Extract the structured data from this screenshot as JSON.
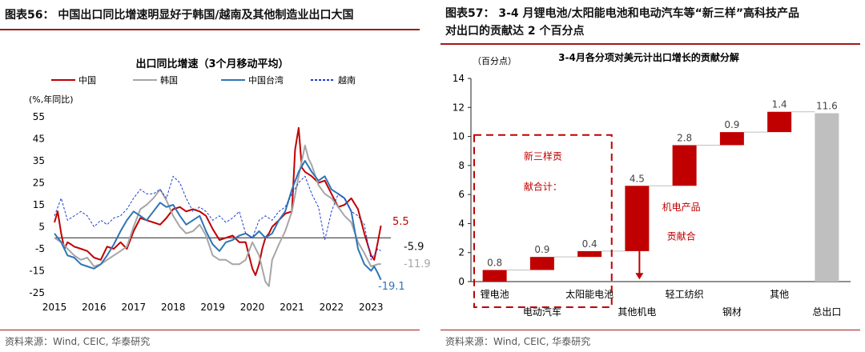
{
  "left": {
    "figure_title": "图表56：  中国出口同比增速明显好于韩国/越南及其他制造业出口大国",
    "source": "资料来源：Wind, CEIC,  华泰研究",
    "chart_data": {
      "type": "line",
      "title": "出口同比增速（3个月移动平均）",
      "ylabel": "(%,年同比)",
      "ylim": [
        -25,
        55
      ],
      "yticks": [
        "55",
        "45",
        "35",
        "25",
        "15",
        "5",
        "-5",
        "-15",
        "-25"
      ],
      "xlim": [
        2015,
        2023.5
      ],
      "xticks": [
        "2015",
        "2016",
        "2017",
        "2018",
        "2019",
        "2020",
        "2021",
        "2022",
        "2023"
      ],
      "legend": "top",
      "series": [
        {
          "name": "中国",
          "color": "#c00000",
          "dash": "",
          "x": [
            2015.0,
            2015.08,
            2015.17,
            2015.25,
            2015.33,
            2015.42,
            2015.5,
            2015.67,
            2015.83,
            2016.0,
            2016.17,
            2016.33,
            2016.5,
            2016.67,
            2016.83,
            2017.0,
            2017.17,
            2017.33,
            2017.5,
            2017.67,
            2017.83,
            2018.0,
            2018.17,
            2018.33,
            2018.5,
            2018.67,
            2018.83,
            2019.0,
            2019.17,
            2019.33,
            2019.5,
            2019.67,
            2019.83,
            2020.0,
            2020.08,
            2020.17,
            2020.25,
            2020.33,
            2020.42,
            2020.5,
            2020.67,
            2020.83,
            2021.0,
            2021.08,
            2021.17,
            2021.25,
            2021.33,
            2021.5,
            2021.67,
            2021.83,
            2022.0,
            2022.17,
            2022.33,
            2022.5,
            2022.67,
            2022.83,
            2023.0,
            2023.08,
            2023.17,
            2023.25
          ],
          "y": [
            7,
            12,
            2,
            -5,
            -2,
            -3,
            -4,
            -5,
            -6,
            -9,
            -10,
            -4,
            -5,
            -2,
            -5,
            3,
            9,
            8,
            7,
            6,
            9,
            13,
            14,
            12,
            13,
            12,
            10,
            4,
            -1,
            0,
            1,
            -2,
            -2,
            -14,
            -17,
            -12,
            -5,
            0,
            2,
            5,
            8,
            11,
            12,
            40,
            50,
            32,
            30,
            28,
            25,
            26,
            20,
            14,
            15,
            18,
            13,
            2,
            -8,
            -10,
            -2,
            5.5
          ]
        },
        {
          "name": "韩国",
          "color": "#a6a6a6",
          "dash": "",
          "x": [
            2015.0,
            2015.17,
            2015.33,
            2015.5,
            2015.67,
            2015.83,
            2016.0,
            2016.17,
            2016.33,
            2016.5,
            2016.67,
            2016.83,
            2017.0,
            2017.17,
            2017.33,
            2017.5,
            2017.67,
            2017.83,
            2018.0,
            2018.17,
            2018.33,
            2018.5,
            2018.67,
            2018.83,
            2019.0,
            2019.17,
            2019.33,
            2019.5,
            2019.67,
            2019.83,
            2020.0,
            2020.17,
            2020.33,
            2020.42,
            2020.5,
            2020.67,
            2020.83,
            2021.0,
            2021.17,
            2021.33,
            2021.42,
            2021.5,
            2021.67,
            2021.83,
            2022.0,
            2022.17,
            2022.33,
            2022.5,
            2022.67,
            2022.83,
            2023.0,
            2023.17,
            2023.25
          ],
          "y": [
            0,
            -2,
            -5,
            -8,
            -10,
            -9,
            -13,
            -12,
            -10,
            -8,
            -6,
            -4,
            5,
            13,
            15,
            18,
            22,
            17,
            10,
            5,
            2,
            3,
            6,
            1,
            -8,
            -10,
            -10,
            -12,
            -12,
            -10,
            -2,
            -8,
            -20,
            -22,
            -10,
            -3,
            3,
            12,
            28,
            42,
            36,
            33,
            24,
            20,
            18,
            14,
            10,
            7,
            -2,
            -7,
            -13,
            -12,
            -11.9
          ]
        },
        {
          "name": "中国台湾",
          "color": "#2e75b6",
          "dash": "",
          "x": [
            2015.0,
            2015.17,
            2015.33,
            2015.5,
            2015.67,
            2015.83,
            2016.0,
            2016.17,
            2016.33,
            2016.5,
            2016.67,
            2016.83,
            2017.0,
            2017.17,
            2017.33,
            2017.5,
            2017.67,
            2017.83,
            2018.0,
            2018.17,
            2018.33,
            2018.5,
            2018.67,
            2018.83,
            2019.0,
            2019.17,
            2019.33,
            2019.5,
            2019.67,
            2019.83,
            2020.0,
            2020.17,
            2020.33,
            2020.5,
            2020.67,
            2020.83,
            2021.0,
            2021.17,
            2021.33,
            2021.5,
            2021.67,
            2021.83,
            2022.0,
            2022.17,
            2022.33,
            2022.5,
            2022.67,
            2022.83,
            2023.0,
            2023.08,
            2023.17,
            2023.25
          ],
          "y": [
            2,
            -2,
            -8,
            -9,
            -12,
            -13,
            -14,
            -12,
            -8,
            -3,
            3,
            8,
            12,
            10,
            8,
            12,
            16,
            14,
            15,
            10,
            6,
            8,
            10,
            3,
            -3,
            -6,
            -2,
            -1,
            1,
            2,
            0,
            3,
            0,
            2,
            8,
            12,
            22,
            30,
            35,
            30,
            26,
            28,
            22,
            20,
            18,
            12,
            -5,
            -12,
            -15,
            -13,
            -16,
            -19.1
          ]
        },
        {
          "name": "越南",
          "color": "#1f3fd0",
          "dash": "3,2",
          "x": [
            2015.0,
            2015.17,
            2015.33,
            2015.5,
            2015.67,
            2015.83,
            2016.0,
            2016.17,
            2016.33,
            2016.5,
            2016.67,
            2016.83,
            2017.0,
            2017.17,
            2017.33,
            2017.5,
            2017.67,
            2017.83,
            2018.0,
            2018.17,
            2018.33,
            2018.5,
            2018.67,
            2018.83,
            2019.0,
            2019.17,
            2019.33,
            2019.5,
            2019.67,
            2019.83,
            2020.0,
            2020.17,
            2020.33,
            2020.5,
            2020.67,
            2020.83,
            2021.0,
            2021.17,
            2021.33,
            2021.5,
            2021.67,
            2021.83,
            2022.0,
            2022.17,
            2022.33,
            2022.5,
            2022.67,
            2022.83,
            2023.0,
            2023.17,
            2023.25
          ],
          "y": [
            10,
            18,
            8,
            10,
            12,
            10,
            5,
            8,
            6,
            9,
            10,
            13,
            18,
            22,
            20,
            20,
            22,
            18,
            28,
            25,
            18,
            12,
            14,
            12,
            8,
            10,
            7,
            9,
            12,
            2,
            0,
            8,
            10,
            8,
            12,
            14,
            20,
            25,
            28,
            20,
            14,
            -1,
            12,
            20,
            18,
            12,
            10,
            6,
            -10,
            -5,
            -5.9
          ]
        }
      ],
      "end_labels": [
        {
          "text": "5.5",
          "value": 5.5,
          "color": "#c00000"
        },
        {
          "text": "-5.9",
          "value": -5.9,
          "color": "#111111"
        },
        {
          "text": "-11.9",
          "value": -11.9,
          "color": "#a6a6a6"
        },
        {
          "text": "-19.1",
          "value": -19.1,
          "color": "#2e75b6"
        }
      ]
    }
  },
  "right": {
    "figure_title_line1": "图表57：  3-4 月锂电池/太阳能电池和电动汽车等“新三样”高科技产品",
    "figure_title_line2": "对出口的贡献达 2 个百分点",
    "source": "资料来源：Wind, CEIC,  华泰研究",
    "chart_data": {
      "type": "bar",
      "subtype": "waterfall",
      "title": "3-4月各分项对美元计出口增长的贡献分解",
      "ylabel": "（百分点）",
      "ylim": [
        0,
        14
      ],
      "yticks": [
        "0",
        "2",
        "4",
        "6",
        "8",
        "10",
        "12",
        "14"
      ],
      "categories": [
        "锂电池",
        "电动汽车",
        "太阳能电池",
        "其他机电",
        "轻工纺织",
        "钢材",
        "其他",
        "总出口"
      ],
      "values": [
        0.8,
        0.9,
        0.4,
        4.5,
        2.8,
        0.9,
        1.4,
        11.6
      ],
      "value_labels": [
        "0.8",
        "0.9",
        "0.4",
        "4.5",
        "2.8",
        "0.9",
        "1.4",
        "11.6"
      ],
      "bar_colors": [
        "#c00000",
        "#c00000",
        "#c00000",
        "#c00000",
        "#c00000",
        "#c00000",
        "#c00000",
        "#bfbfbf"
      ],
      "annotations": {
        "group1_line1": "新三样贡",
        "group1_line2": "献合计：",
        "group2_line1": "机电产品",
        "group2_line2": "贡献合"
      }
    }
  }
}
